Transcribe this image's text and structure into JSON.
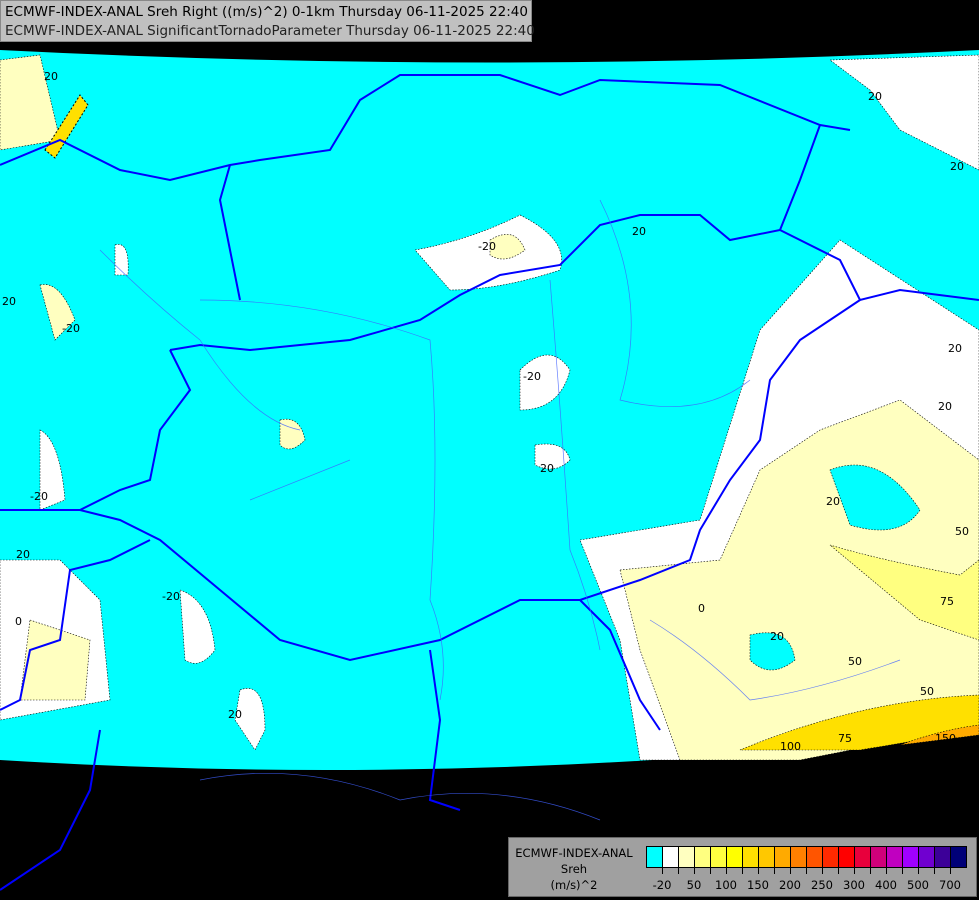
{
  "title": {
    "line1": "ECMWF-INDEX-ANAL Sreh Right ((m/s)^2) 0-1km Thursday 06-11-2025 22:40",
    "line2": "ECMWF-INDEX-ANAL SignificantTornadoParameter Thursday 06-11-2025 22:40"
  },
  "legend": {
    "line1": "ECMWF-INDEX-ANAL",
    "line2": "Sreh",
    "line3": "(m/s)^2",
    "colors": [
      "#00ffff",
      "#ffffff",
      "#ffffc0",
      "#ffff80",
      "#ffff40",
      "#ffff00",
      "#ffe000",
      "#ffc800",
      "#ffaa00",
      "#ff8000",
      "#ff5500",
      "#ff2a00",
      "#ff0000",
      "#e8003c",
      "#d0007a",
      "#c000c0",
      "#a000ff",
      "#7000d0",
      "#3c0098",
      "#000078"
    ],
    "tick_labels": [
      "-20",
      "50",
      "100",
      "150",
      "200",
      "250",
      "300",
      "400",
      "500",
      "700"
    ]
  },
  "contour_labels": [
    "20",
    "20",
    "20",
    "-20",
    "20",
    "20",
    "-20",
    "20",
    "-20",
    "20",
    "20",
    "-20",
    "20",
    "0",
    "20",
    "-20",
    "20",
    "50",
    "75",
    "0",
    "20",
    "50",
    "50",
    "75",
    "100",
    "150"
  ],
  "colors": {
    "background": "#000000",
    "low": "#00ffff",
    "border": "#0000ff",
    "rivers": "#4060ff"
  }
}
